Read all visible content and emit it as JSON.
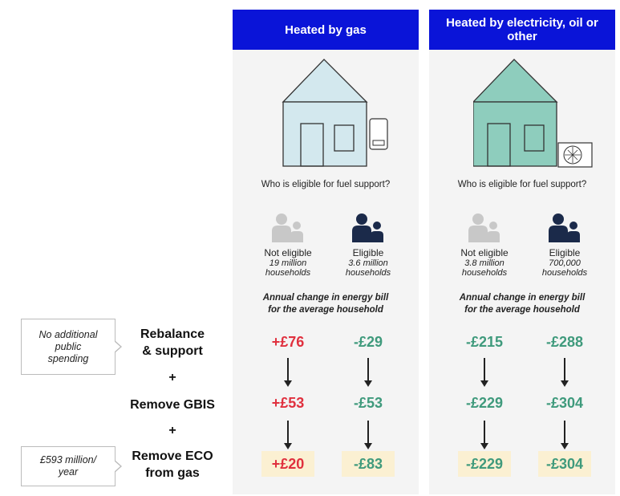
{
  "panels": [
    {
      "header": "Heated by gas",
      "house_color": "#d3e8ee",
      "device": "boiler-icon",
      "question": "Who is eligible for fuel support?",
      "groups": [
        {
          "status": "Not eligible",
          "count_1": "19 million",
          "count_2": "households",
          "eligible": false
        },
        {
          "status": "Eligible",
          "count_1": "3.6 million",
          "count_2": "households",
          "eligible": true
        }
      ],
      "bill_label_1": "Annual change in energy bill",
      "bill_label_2": "for the average household",
      "rows": [
        [
          "+£76",
          "-£29"
        ],
        [
          "+£53",
          "-£53"
        ],
        [
          "+£20",
          "-£83"
        ]
      ]
    },
    {
      "header": "Heated by electricity, oil or other",
      "house_color": "#8ecdbd",
      "device": "heat-pump-icon",
      "question": "Who is eligible for fuel support?",
      "groups": [
        {
          "status": "Not eligible",
          "count_1": "3.8 million",
          "count_2": "households",
          "eligible": false
        },
        {
          "status": "Eligible",
          "count_1": "700,000",
          "count_2": "households",
          "eligible": true
        }
      ],
      "bill_label_1": "Annual change in energy bill",
      "bill_label_2": "for the average household",
      "rows": [
        [
          "-£215",
          "-£288"
        ],
        [
          "-£229",
          "-£304"
        ],
        [
          "-£229",
          "-£304"
        ]
      ]
    }
  ],
  "steps": {
    "step1_line1": "Rebalance",
    "step1_line2": "& support",
    "plus": "+",
    "step2": "Remove GBIS",
    "step3_line1": "Remove ECO",
    "step3_line2": "from gas"
  },
  "callouts": {
    "callout1_l1": "No additional",
    "callout1_l2": "public",
    "callout1_l3": "spending",
    "callout2_l1": "£593 million/",
    "callout2_l2": "year"
  },
  "colors": {
    "header_blue": "#0a14d8",
    "increase_red": "#e0303e",
    "decrease_green": "#3f9a7c",
    "eligible_navy": "#1b2a4a",
    "not_eligible_grey": "#c8c8c8",
    "highlight": "#fbf0d2"
  }
}
